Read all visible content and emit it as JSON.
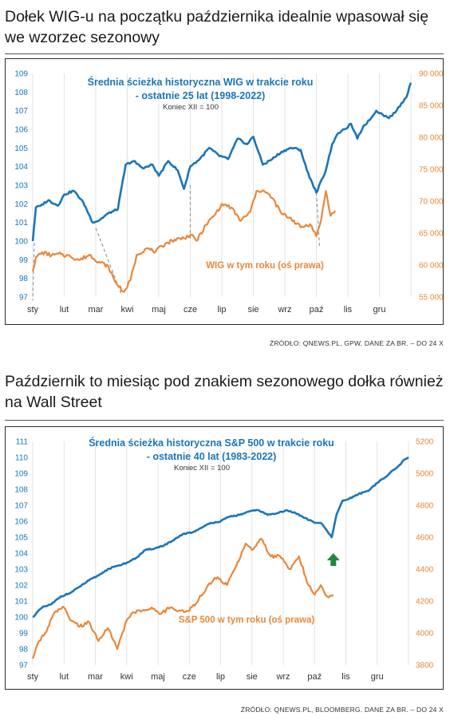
{
  "sections": [
    {
      "headline": "Dołek WIG-u na początku października idealnie wpasował się we wzorzec sezonowy",
      "source": "ŹRÓDŁO: QNEWS.PL, GPW. DANE ZA BR. – DO 24 X"
    },
    {
      "headline": "Październik to miesiąc pod znakiem sezonowego dołka również na Wall Street",
      "source": "ŹRÓDŁO: QNEWS.PL, BLOOMBERG. DANE ZA BR. – DO 24 X"
    }
  ],
  "colors": {
    "blue": "#1b75b8",
    "orange": "#e8873a",
    "grid": "#e3e3e3",
    "dashed": "#9a9a9a",
    "arrow": "#1f8a3b"
  },
  "chart_data": [
    {
      "type": "line",
      "title": "Średnia ścieżka historyczna WIG w trakcie roku",
      "subtitle": "- ostatnie 25 lat (1998-2022)",
      "note": "Koniec XII = 100",
      "annotation": "WIG w tym roku (oś prawa)",
      "categories": [
        "sty",
        "lut",
        "mar",
        "kwi",
        "maj",
        "cze",
        "lip",
        "sie",
        "wrz",
        "paź",
        "lis",
        "gru"
      ],
      "y_left": {
        "min": 97,
        "max": 109,
        "ticks": [
          "97",
          "98",
          "99",
          "100",
          "101",
          "102",
          "103",
          "104",
          "105",
          "106",
          "107",
          "108",
          "109"
        ]
      },
      "y_right": {
        "min": 55000,
        "max": 90000,
        "ticks": [
          "55 000",
          "60 000",
          "65 000",
          "70 000",
          "75 000",
          "80 000",
          "85 000",
          "90 000"
        ]
      },
      "series": [
        {
          "axis": "left",
          "x": [
            0,
            0.1,
            0.25,
            0.5,
            0.8,
            1.0,
            1.3,
            1.6,
            1.9,
            2.1,
            2.4,
            2.7,
            2.95,
            3.2,
            3.5,
            3.8,
            4.0,
            4.3,
            4.6,
            4.8,
            5.0,
            5.3,
            5.6,
            5.9,
            6.2,
            6.5,
            6.8,
            7.0,
            7.3,
            7.6,
            7.9,
            8.2,
            8.5,
            8.7,
            9.0,
            9.3,
            9.5,
            9.7,
            9.9,
            10.1,
            10.3,
            10.5,
            10.7,
            10.9,
            11.1,
            11.3,
            11.5,
            11.7,
            11.85,
            12.0
          ],
          "values": [
            100.0,
            101.8,
            101.9,
            102.2,
            101.9,
            102.5,
            102.7,
            102.1,
            101.0,
            101.1,
            101.5,
            101.7,
            104.1,
            104.3,
            103.9,
            104.1,
            103.5,
            104.3,
            103.8,
            102.8,
            104.0,
            104.4,
            105.0,
            104.6,
            104.4,
            105.5,
            105.2,
            105.6,
            104.1,
            104.4,
            104.8,
            105.0,
            104.9,
            103.8,
            102.6,
            103.8,
            105.2,
            105.8,
            106.0,
            106.3,
            105.5,
            106.2,
            106.5,
            107.0,
            106.8,
            106.6,
            106.9,
            107.4,
            107.7,
            108.5
          ]
        },
        {
          "axis": "right",
          "x": [
            0,
            0.1,
            0.3,
            0.6,
            0.9,
            1.2,
            1.5,
            1.8,
            2.1,
            2.4,
            2.6,
            2.9,
            3.1,
            3.3,
            3.6,
            3.9,
            4.2,
            4.5,
            4.8,
            5.0,
            5.2,
            5.5,
            5.8,
            6.0,
            6.3,
            6.6,
            6.9,
            7.1,
            7.3,
            7.6,
            7.9,
            8.2,
            8.5,
            8.8,
            9.0,
            9.15,
            9.3,
            9.45,
            9.6
          ],
          "values": [
            59000,
            61200,
            62000,
            61500,
            61700,
            61300,
            60800,
            61600,
            60500,
            59800,
            57500,
            55800,
            57600,
            61600,
            62600,
            62100,
            63300,
            64000,
            64200,
            64700,
            63800,
            66300,
            68000,
            69600,
            69000,
            66900,
            68300,
            71600,
            71700,
            70500,
            68000,
            67300,
            65900,
            66400,
            64500,
            67000,
            71600,
            67700,
            68500
          ]
        }
      ],
      "arrows": "dashed lines connecting matching troughs",
      "grid": "vertical"
    },
    {
      "type": "line",
      "title": "Średnia ścieżka historyczna S&P 500 w trakcie roku",
      "subtitle": "- ostatnie 40 lat (1983-2022)",
      "note": "Koniec XII = 100",
      "annotation": "S&P 500 w tym roku (oś prawa)",
      "categories": [
        "sty",
        "lut",
        "mar",
        "kwi",
        "maj",
        "cze",
        "lip",
        "sie",
        "wrz",
        "paź",
        "lis",
        "gru"
      ],
      "y_left": {
        "min": 97,
        "max": 111,
        "ticks": [
          "97",
          "98",
          "99",
          "100",
          "101",
          "102",
          "103",
          "104",
          "105",
          "106",
          "107",
          "108",
          "109",
          "110",
          "111"
        ]
      },
      "y_right": {
        "min": 3800,
        "max": 5200,
        "ticks": [
          "3800",
          "4000",
          "4200",
          "4400",
          "4600",
          "4800",
          "5000",
          "5200"
        ]
      },
      "series": [
        {
          "axis": "left",
          "x": [
            0,
            0.3,
            0.6,
            0.9,
            1.2,
            1.5,
            1.8,
            2.1,
            2.4,
            2.7,
            3.0,
            3.3,
            3.6,
            3.9,
            4.2,
            4.5,
            4.8,
            5.1,
            5.4,
            5.7,
            6.0,
            6.3,
            6.6,
            6.9,
            7.2,
            7.5,
            7.8,
            8.1,
            8.4,
            8.7,
            9.0,
            9.2,
            9.4,
            9.55,
            9.7,
            9.9,
            10.1,
            10.4,
            10.7,
            11.0,
            11.3,
            11.5,
            11.7,
            11.9,
            12.0
          ],
          "values": [
            100.0,
            100.6,
            100.8,
            101.3,
            101.5,
            101.9,
            102.3,
            102.6,
            103.0,
            103.2,
            103.4,
            103.7,
            104.2,
            104.3,
            104.5,
            104.8,
            105.2,
            105.3,
            105.6,
            105.9,
            106.0,
            106.3,
            106.4,
            106.6,
            106.7,
            106.4,
            106.5,
            106.7,
            106.5,
            106.2,
            105.9,
            105.9,
            105.4,
            105.0,
            106.4,
            107.3,
            107.4,
            107.7,
            107.9,
            108.4,
            108.8,
            109.2,
            109.5,
            109.9,
            110.0
          ]
        },
        {
          "axis": "right",
          "x": [
            0,
            0.2,
            0.4,
            0.7,
            1.0,
            1.2,
            1.5,
            1.8,
            2.1,
            2.4,
            2.7,
            3.0,
            3.2,
            3.5,
            3.8,
            4.1,
            4.4,
            4.7,
            5.0,
            5.3,
            5.6,
            5.9,
            6.2,
            6.5,
            6.8,
            7.0,
            7.3,
            7.6,
            7.9,
            8.2,
            8.5,
            8.8,
            9.0,
            9.2,
            9.4,
            9.6
          ],
          "values": [
            3840,
            3950,
            4000,
            4130,
            4160,
            4080,
            4040,
            4070,
            3950,
            4030,
            3900,
            4080,
            4130,
            4140,
            4160,
            4120,
            4160,
            4140,
            4140,
            4210,
            4300,
            4350,
            4300,
            4420,
            4560,
            4520,
            4590,
            4480,
            4480,
            4400,
            4480,
            4300,
            4240,
            4300,
            4230,
            4240
          ]
        }
      ],
      "grid": "vertical"
    }
  ]
}
